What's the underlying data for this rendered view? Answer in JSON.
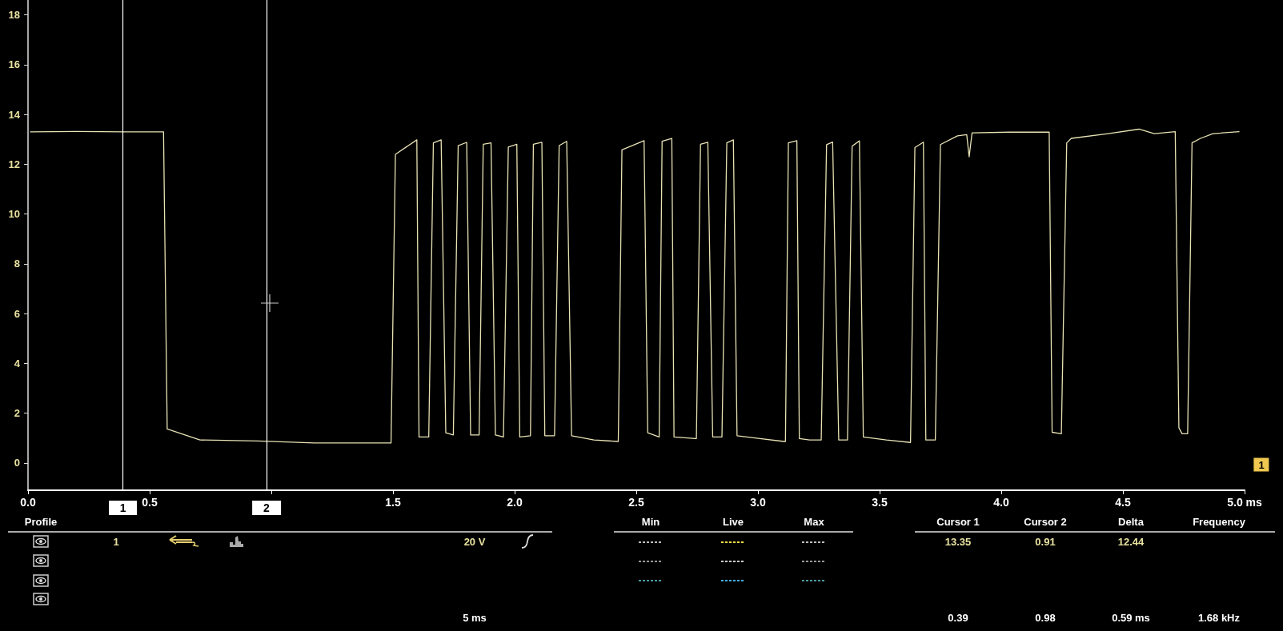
{
  "chart_data": {
    "type": "line",
    "x": [
      0.01,
      0.2,
      0.4,
      0.557,
      0.572,
      0.707,
      0.942,
      1.177,
      1.483,
      1.492,
      1.51,
      1.598,
      1.607,
      1.647,
      1.666,
      1.698,
      1.717,
      1.748,
      1.768,
      1.803,
      1.819,
      1.854,
      1.871,
      1.903,
      1.921,
      1.954,
      1.974,
      2.009,
      2.021,
      2.065,
      2.077,
      2.112,
      2.124,
      2.164,
      2.183,
      2.214,
      2.234,
      2.326,
      2.426,
      2.441,
      2.532,
      2.547,
      2.594,
      2.606,
      2.646,
      2.655,
      2.743,
      2.747,
      2.764,
      2.794,
      2.814,
      2.852,
      2.872,
      2.899,
      2.914,
      3.008,
      3.107,
      3.113,
      3.125,
      3.16,
      3.17,
      3.212,
      3.26,
      3.282,
      3.307,
      3.332,
      3.368,
      3.387,
      3.417,
      3.433,
      3.528,
      3.627,
      3.645,
      3.68,
      3.69,
      3.729,
      3.75,
      3.82,
      3.858,
      3.868,
      3.88,
      4.035,
      4.197,
      4.209,
      4.247,
      4.269,
      4.288,
      4.439,
      4.566,
      4.629,
      4.715,
      4.73,
      4.743,
      4.766,
      4.784,
      4.819,
      4.87,
      4.977
    ],
    "series": [
      {
        "color": "#e8e2b4",
        "values": [
          13.3,
          13.32,
          13.3,
          13.3,
          1.36,
          0.92,
          0.88,
          0.8,
          0.8,
          0.8,
          12.4,
          12.98,
          1.04,
          1.04,
          12.86,
          12.98,
          1.21,
          1.12,
          12.75,
          12.88,
          1.12,
          1.12,
          12.8,
          12.86,
          1.12,
          1.04,
          12.69,
          12.8,
          1.04,
          1.09,
          12.8,
          12.88,
          1.09,
          1.09,
          12.75,
          12.92,
          1.09,
          0.92,
          0.86,
          12.58,
          12.95,
          1.21,
          1.04,
          12.92,
          13.04,
          1.04,
          0.98,
          0.98,
          12.8,
          12.88,
          1.04,
          1.04,
          12.86,
          12.98,
          1.09,
          0.98,
          0.86,
          0.86,
          12.86,
          12.95,
          0.98,
          0.92,
          0.92,
          12.79,
          12.89,
          0.92,
          0.92,
          12.73,
          12.94,
          1.04,
          0.92,
          0.82,
          12.67,
          12.89,
          0.92,
          0.92,
          12.79,
          13.14,
          13.19,
          12.3,
          13.26,
          13.29,
          13.29,
          1.23,
          1.17,
          12.86,
          13.04,
          13.23,
          13.41,
          13.23,
          13.31,
          1.41,
          1.17,
          1.17,
          12.86,
          13.04,
          13.23,
          13.31
        ]
      }
    ],
    "xlim": [
      0,
      5
    ],
    "xticks": [
      {
        "value": 0,
        "label": "0.0"
      },
      {
        "value": 0.5,
        "label": "0.5"
      },
      {
        "value": 1,
        "label": null
      },
      {
        "value": 1.5,
        "label": "1.5"
      },
      {
        "value": 2,
        "label": "2.0"
      },
      {
        "value": 2.5,
        "label": "2.5"
      },
      {
        "value": 3,
        "label": "3.0"
      },
      {
        "value": 3.5,
        "label": "3.5"
      },
      {
        "value": 4,
        "label": "4.0"
      },
      {
        "value": 4.5,
        "label": "4.5"
      },
      {
        "value": 5,
        "label": "5.0 ms"
      }
    ],
    "ylim": [
      -1.1,
      18.6
    ],
    "yticks": [
      0,
      2,
      4,
      6,
      8,
      10,
      12,
      14,
      16,
      18
    ],
    "ref_lines": [
      {
        "axis": "x",
        "value": 0.39,
        "color": "#ffffff"
      },
      {
        "axis": "x",
        "value": 0.98,
        "color": "#ffffff"
      }
    ],
    "marker": "none",
    "line_style": "solid",
    "annotations": [
      "Profile",
      "1",
      "20 V",
      "5 ms",
      "Min",
      "Live",
      "Max",
      "Cursor 1",
      "Cursor 2",
      "Delta",
      "Frequency",
      "13.35",
      "0.91",
      "12.44",
      "0.39",
      "0.98",
      "0.59 ms",
      "1.68 kHz",
      "1",
      {
        "text": "1",
        "x": 0.39,
        "y": -1.1
      },
      {
        "text": "2",
        "x": 0.98,
        "y": -1.1
      }
    ]
  }
}
